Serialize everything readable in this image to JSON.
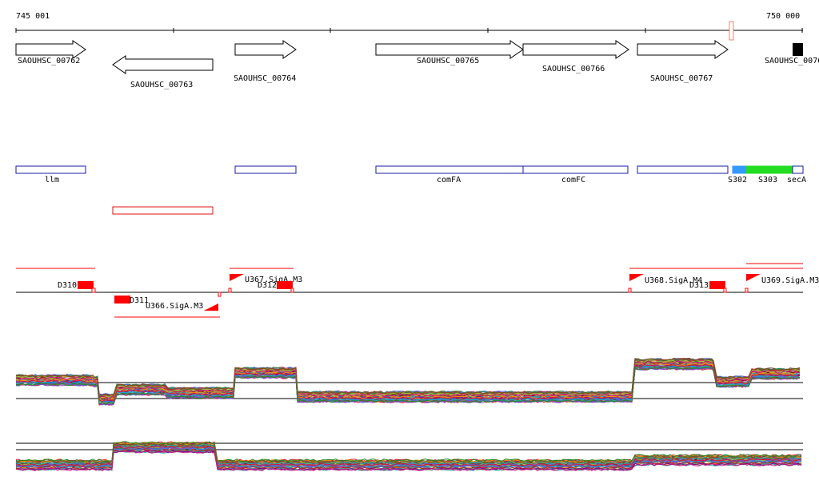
{
  "ruler": {
    "start_label": "745 001",
    "end_label": "750 000"
  },
  "colors": {
    "feature_outline": "#000000",
    "annotation_outline": "#1a1aa6",
    "antisense_outline": "#e01010",
    "segment_red": "#ff0000",
    "s302": "#3399ff",
    "s303": "#22dd22",
    "highlight": "#e88070"
  },
  "genes": [
    {
      "label": "SAOUHSC_00762",
      "strand": "+"
    },
    {
      "label": "SAOUHSC_00763",
      "strand": "-"
    },
    {
      "label": "SAOUHSC_00764",
      "strand": "+"
    },
    {
      "label": "SAOUHSC_00765",
      "strand": "+"
    },
    {
      "label": "SAOUHSC_00766",
      "strand": "+"
    },
    {
      "label": "SAOUHSC_00767",
      "strand": "+"
    },
    {
      "label": "SAOUHSC_0076",
      "strand": "+"
    }
  ],
  "operons": [
    "llm",
    "comFA",
    "comFC",
    "S302",
    "S303",
    "secA"
  ],
  "segments": [
    "D310",
    "D311",
    "U366.SigA.M3",
    "U367.SigA.M3",
    "D312",
    "U368.SigA.M4",
    "D313",
    "U369.SigA.M3"
  ],
  "expression_tracks": [
    {
      "name": "upper",
      "series_count": 40
    },
    {
      "name": "lower",
      "series_count": 40
    }
  ]
}
